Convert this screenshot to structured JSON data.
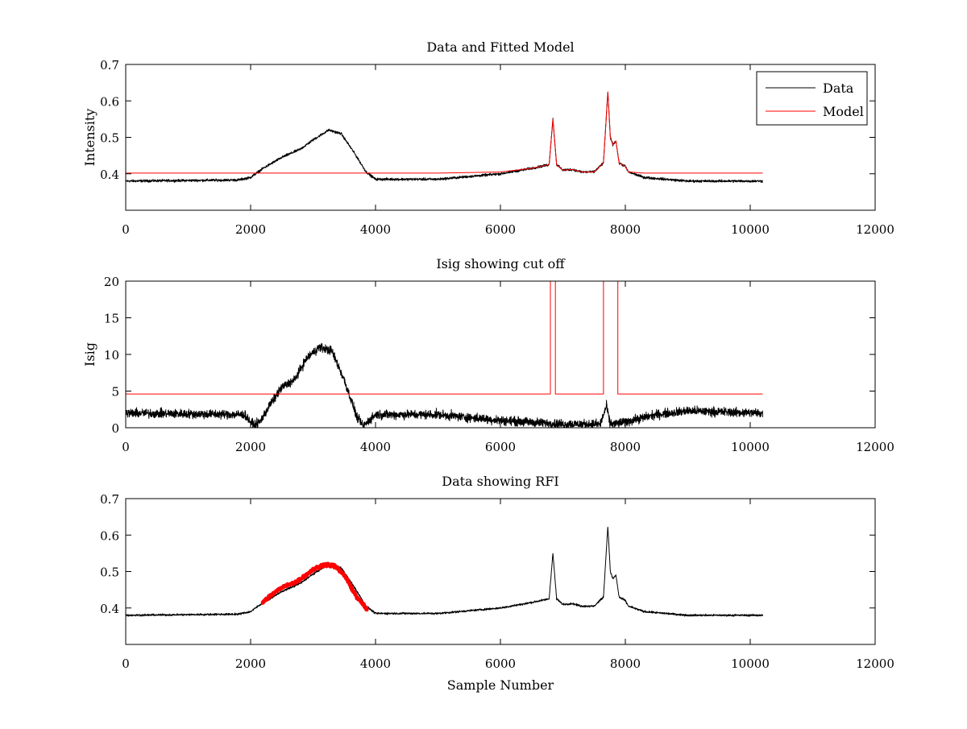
{
  "chart_data": [
    {
      "type": "line",
      "title": "Data and Fitted Model",
      "xlabel": "",
      "ylabel": "Intensity",
      "xlim": [
        0,
        12000
      ],
      "ylim": [
        0.3,
        0.7
      ],
      "xticks": [
        0,
        2000,
        4000,
        6000,
        8000,
        10000,
        12000
      ],
      "yticks": [
        0.4,
        0.5,
        0.6,
        0.7
      ],
      "ytick_labels": [
        "0.4",
        "0.5",
        "0.6",
        "0.7"
      ],
      "legend": {
        "placement": "top-right",
        "entries": [
          "Data",
          "Model"
        ]
      },
      "series": [
        {
          "name": "Data",
          "color": "#000000",
          "noise": 0.005,
          "x": [
            0,
            1800,
            2000,
            2200,
            2500,
            2800,
            3000,
            3250,
            3450,
            3650,
            3850,
            4000,
            5000,
            6000,
            6500,
            6780,
            6840,
            6900,
            7000,
            7150,
            7300,
            7500,
            7650,
            7720,
            7760,
            7800,
            7850,
            7900,
            8000,
            8050,
            8300,
            9000,
            10200
          ],
          "y": [
            0.38,
            0.383,
            0.39,
            0.415,
            0.445,
            0.468,
            0.493,
            0.52,
            0.51,
            0.46,
            0.405,
            0.385,
            0.385,
            0.4,
            0.415,
            0.425,
            0.55,
            0.425,
            0.41,
            0.412,
            0.405,
            0.405,
            0.43,
            0.625,
            0.5,
            0.48,
            0.49,
            0.43,
            0.42,
            0.405,
            0.39,
            0.38,
            0.38
          ]
        },
        {
          "name": "Model",
          "color": "#ff0000",
          "noise": 0,
          "x": [
            0,
            4600,
            5000,
            6000,
            6500,
            6780,
            6840,
            6900,
            7000,
            7150,
            7300,
            7500,
            7650,
            7720,
            7760,
            7800,
            7850,
            7900,
            8000,
            8050,
            8300,
            10200
          ],
          "y": [
            0.402,
            0.402,
            0.402,
            0.405,
            0.415,
            0.425,
            0.55,
            0.425,
            0.41,
            0.412,
            0.405,
            0.405,
            0.43,
            0.625,
            0.5,
            0.48,
            0.49,
            0.43,
            0.42,
            0.405,
            0.402,
            0.402
          ]
        }
      ]
    },
    {
      "type": "line",
      "title": "Isig showing cut off",
      "xlabel": "",
      "ylabel": "Isig",
      "xlim": [
        0,
        12000
      ],
      "ylim": [
        0,
        20
      ],
      "xticks": [
        0,
        2000,
        4000,
        6000,
        8000,
        10000,
        12000
      ],
      "yticks": [
        0,
        5,
        10,
        15,
        20
      ],
      "ytick_labels": [
        "0",
        "5",
        "10",
        "15",
        "20"
      ],
      "series": [
        {
          "color": "#000000",
          "noise": 0.9,
          "x": [
            0,
            1900,
            2050,
            2150,
            2300,
            2500,
            2700,
            2900,
            3100,
            3300,
            3500,
            3700,
            3800,
            4000,
            5000,
            6000,
            7000,
            7600,
            7700,
            7750,
            7800,
            8000,
            8500,
            9000,
            10200
          ],
          "y": [
            2,
            1.8,
            0.3,
            0.8,
            3.0,
            5.5,
            6.5,
            9.5,
            11.0,
            10.5,
            6.5,
            1.5,
            0.2,
            1.8,
            1.8,
            1.0,
            0.5,
            0.5,
            3.0,
            0.7,
            0.5,
            0.8,
            1.8,
            2.3,
            2.0
          ]
        },
        {
          "color": "#ff0000",
          "noise": 0,
          "x": [
            0,
            6800,
            6800,
            6880,
            6880,
            7650,
            7650,
            7880,
            7880,
            10200
          ],
          "y": [
            4.6,
            4.6,
            20,
            20,
            4.6,
            4.6,
            20,
            20,
            4.6,
            4.6
          ]
        }
      ]
    },
    {
      "type": "line",
      "title": "Data showing RFI",
      "xlabel": "Sample Number",
      "ylabel": "",
      "xlim": [
        0,
        12000
      ],
      "ylim": [
        0.3,
        0.7
      ],
      "xticks": [
        0,
        2000,
        4000,
        6000,
        8000,
        10000,
        12000
      ],
      "yticks": [
        0.4,
        0.5,
        0.6,
        0.7
      ],
      "ytick_labels": [
        "0.4",
        "0.5",
        "0.6",
        "0.7"
      ],
      "series": [
        {
          "color": "#000000",
          "noise": 0.004,
          "x": [
            0,
            1800,
            2000,
            2200,
            2500,
            2800,
            3000,
            3250,
            3450,
            3650,
            3850,
            4000,
            5000,
            6000,
            6500,
            6780,
            6840,
            6900,
            7000,
            7150,
            7300,
            7500,
            7650,
            7720,
            7760,
            7800,
            7850,
            7900,
            8000,
            8050,
            8300,
            9000,
            10200
          ],
          "y": [
            0.38,
            0.383,
            0.39,
            0.415,
            0.445,
            0.468,
            0.493,
            0.52,
            0.51,
            0.46,
            0.405,
            0.385,
            0.385,
            0.4,
            0.415,
            0.425,
            0.55,
            0.425,
            0.41,
            0.412,
            0.405,
            0.405,
            0.43,
            0.625,
            0.5,
            0.48,
            0.49,
            0.43,
            0.42,
            0.405,
            0.39,
            0.38,
            0.38
          ]
        },
        {
          "color": "#ff0000",
          "noise": 0.006,
          "thick": true,
          "x": [
            2170,
            2400,
            2600,
            2700,
            2800,
            3000,
            3200,
            3350,
            3500,
            3700,
            3870
          ],
          "y": [
            0.412,
            0.445,
            0.465,
            0.468,
            0.48,
            0.505,
            0.52,
            0.515,
            0.49,
            0.43,
            0.395
          ]
        }
      ]
    }
  ]
}
